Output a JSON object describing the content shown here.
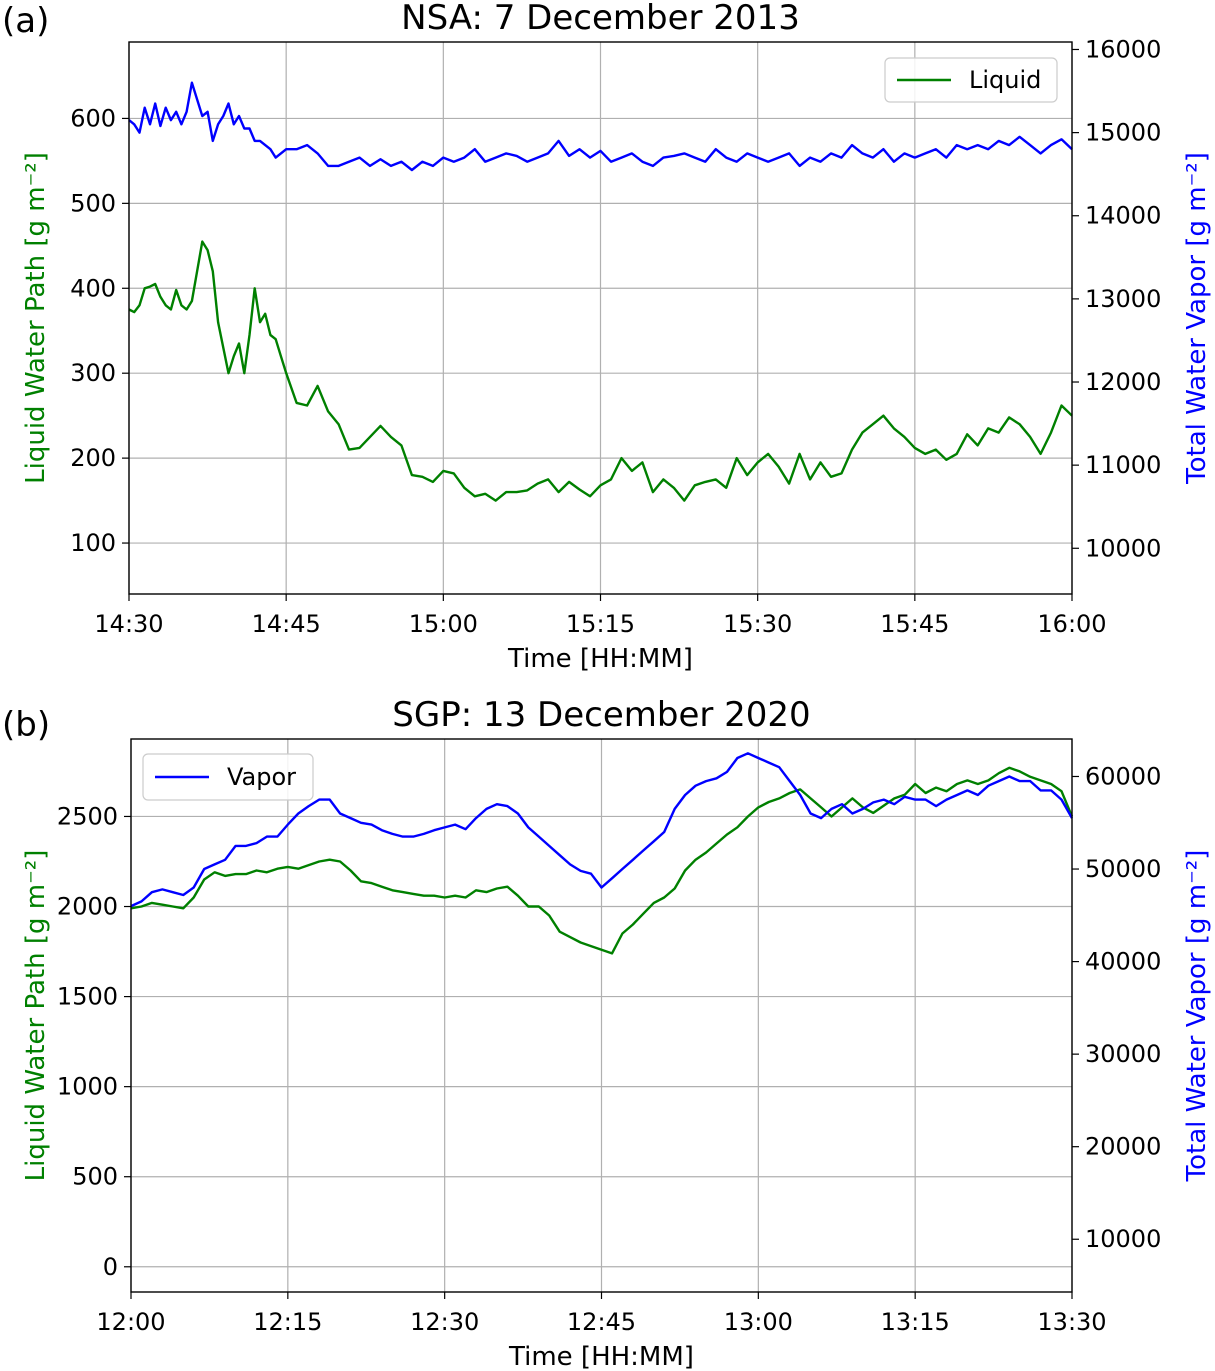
{
  "figure": {
    "panels": [
      {
        "label": "(a)",
        "title": "NSA: 7 December 2013"
      },
      {
        "label": "(b)",
        "title": "SGP: 13 December 2020"
      }
    ]
  },
  "chart_data": [
    {
      "type": "line",
      "title": "NSA: 7 December 2013",
      "panel_label": "(a)",
      "xlabel": "Time [HH:MM]",
      "ylabel": "Liquid Water Path [g m⁻²]",
      "ylabel_right": "Total Water Vapor [g m⁻²]",
      "x_ticks": [
        "14:30",
        "14:45",
        "15:00",
        "15:15",
        "15:30",
        "15:45",
        "16:00"
      ],
      "xlim_minutes": [
        0,
        90
      ],
      "ylim": [
        40,
        690
      ],
      "ylim_right": [
        9450,
        16090
      ],
      "y_ticks": [
        100,
        200,
        300,
        400,
        500,
        600
      ],
      "y_ticks_right": [
        10000,
        11000,
        12000,
        13000,
        14000,
        15000,
        16000
      ],
      "grid": true,
      "legend": {
        "position": "top-right",
        "entries": [
          "Liquid"
        ]
      },
      "colors": {
        "liquid": "#008000",
        "vapor": "#0000ff"
      },
      "series": [
        {
          "name": "Liquid",
          "axis": "left",
          "color": "#008000",
          "x": [
            0,
            0.5,
            1,
            1.5,
            2,
            2.5,
            3,
            3.5,
            4,
            4.5,
            5,
            5.5,
            6,
            6.5,
            7,
            7.5,
            8,
            8.5,
            9,
            9.5,
            10,
            10.5,
            11,
            11.5,
            12,
            12.5,
            13,
            13.5,
            14,
            14.5,
            15,
            16,
            17,
            18,
            19,
            20,
            21,
            22,
            23,
            24,
            25,
            26,
            27,
            28,
            29,
            30,
            31,
            32,
            33,
            34,
            35,
            36,
            37,
            38,
            39,
            40,
            41,
            42,
            43,
            44,
            45,
            46,
            47,
            48,
            49,
            50,
            51,
            52,
            53,
            54,
            55,
            56,
            57,
            58,
            59,
            60,
            61,
            62,
            63,
            64,
            65,
            66,
            67,
            68,
            69,
            70,
            71,
            72,
            73,
            74,
            75,
            76,
            77,
            78,
            79,
            80,
            81,
            82,
            83,
            84,
            85,
            86,
            87,
            88,
            89,
            90
          ],
          "values": [
            375,
            372,
            380,
            400,
            402,
            405,
            390,
            380,
            375,
            398,
            380,
            375,
            385,
            420,
            455,
            445,
            420,
            360,
            330,
            300,
            320,
            335,
            300,
            345,
            400,
            360,
            370,
            345,
            340,
            320,
            300,
            265,
            262,
            285,
            255,
            240,
            210,
            212,
            225,
            238,
            225,
            215,
            180,
            178,
            172,
            185,
            182,
            165,
            155,
            158,
            150,
            160,
            160,
            162,
            170,
            175,
            160,
            172,
            163,
            155,
            168,
            175,
            200,
            185,
            195,
            160,
            175,
            165,
            150,
            168,
            172,
            175,
            165,
            200,
            180,
            195,
            205,
            190,
            170,
            205,
            175,
            195,
            178,
            182,
            210,
            230,
            240,
            250,
            235,
            225,
            212,
            205,
            210,
            198,
            205,
            228,
            215,
            235,
            230,
            248,
            240,
            225,
            205,
            230,
            262,
            250
          ]
        },
        {
          "name": "Total Water Vapor",
          "axis": "right",
          "color": "#0000ff",
          "x": [
            0,
            0.5,
            1,
            1.5,
            2,
            2.5,
            3,
            3.5,
            4,
            4.5,
            5,
            5.5,
            6,
            6.5,
            7,
            7.5,
            8,
            8.5,
            9,
            9.5,
            10,
            10.5,
            11,
            11.5,
            12,
            12.5,
            13,
            13.5,
            14,
            14.5,
            15,
            16,
            17,
            18,
            19,
            20,
            21,
            22,
            23,
            24,
            25,
            26,
            27,
            28,
            29,
            30,
            31,
            32,
            33,
            34,
            35,
            36,
            37,
            38,
            39,
            40,
            41,
            42,
            43,
            44,
            45,
            46,
            47,
            48,
            49,
            50,
            51,
            52,
            53,
            54,
            55,
            56,
            57,
            58,
            59,
            60,
            61,
            62,
            63,
            64,
            65,
            66,
            67,
            68,
            69,
            70,
            71,
            72,
            73,
            74,
            75,
            76,
            77,
            78,
            79,
            80,
            81,
            82,
            83,
            84,
            85,
            86,
            87,
            88,
            89,
            90
          ],
          "values": [
            15150,
            15100,
            15000,
            15300,
            15100,
            15350,
            15080,
            15300,
            15150,
            15250,
            15100,
            15250,
            15600,
            15400,
            15200,
            15250,
            14900,
            15100,
            15200,
            15350,
            15100,
            15200,
            15050,
            15050,
            14900,
            14900,
            14850,
            14800,
            14700,
            14750,
            14800,
            14800,
            14850,
            14750,
            14600,
            14600,
            14650,
            14700,
            14600,
            14680,
            14600,
            14650,
            14550,
            14650,
            14600,
            14700,
            14650,
            14700,
            14800,
            14650,
            14700,
            14750,
            14720,
            14650,
            14700,
            14750,
            14900,
            14720,
            14800,
            14700,
            14780,
            14650,
            14700,
            14750,
            14650,
            14600,
            14700,
            14720,
            14750,
            14700,
            14650,
            14800,
            14700,
            14650,
            14750,
            14700,
            14650,
            14700,
            14750,
            14600,
            14700,
            14650,
            14750,
            14700,
            14850,
            14750,
            14700,
            14800,
            14650,
            14750,
            14700,
            14750,
            14800,
            14700,
            14850,
            14800,
            14850,
            14800,
            14900,
            14850,
            14950,
            14850,
            14750,
            14850,
            14920,
            14800
          ]
        }
      ]
    },
    {
      "type": "line",
      "title": "SGP: 13 December 2020",
      "panel_label": "(b)",
      "xlabel": "Time [HH:MM]",
      "ylabel": "Liquid Water Path [g m⁻²]",
      "ylabel_right": "Total Water Vapor [g m⁻²]",
      "x_ticks": [
        "12:00",
        "12:15",
        "12:30",
        "12:45",
        "13:00",
        "13:15",
        "13:30"
      ],
      "xlim_minutes": [
        0,
        90
      ],
      "ylim": [
        -140,
        2930
      ],
      "ylim_right": [
        4300,
        64050
      ],
      "y_ticks": [
        0,
        500,
        1000,
        1500,
        2000,
        2500
      ],
      "y_ticks_right": [
        10000,
        20000,
        30000,
        40000,
        50000,
        60000
      ],
      "grid": true,
      "legend": {
        "position": "top-left",
        "entries": [
          "Vapor"
        ]
      },
      "colors": {
        "liquid": "#008000",
        "vapor": "#0000ff"
      },
      "series": [
        {
          "name": "Liquid Water Path",
          "axis": "left",
          "color": "#008000",
          "x": [
            0,
            1,
            2,
            3,
            4,
            5,
            6,
            7,
            8,
            9,
            10,
            11,
            12,
            13,
            14,
            15,
            16,
            17,
            18,
            19,
            20,
            21,
            22,
            23,
            24,
            25,
            26,
            27,
            28,
            29,
            30,
            31,
            32,
            33,
            34,
            35,
            36,
            37,
            38,
            39,
            40,
            41,
            42,
            43,
            44,
            45,
            46,
            47,
            48,
            49,
            50,
            51,
            52,
            53,
            54,
            55,
            56,
            57,
            58,
            59,
            60,
            61,
            62,
            63,
            64,
            65,
            66,
            67,
            68,
            69,
            70,
            71,
            72,
            73,
            74,
            75,
            76,
            77,
            78,
            79,
            80,
            81,
            82,
            83,
            84,
            85,
            86,
            87,
            88,
            89,
            90
          ],
          "values": [
            1990,
            2000,
            2020,
            2010,
            2000,
            1990,
            2050,
            2150,
            2190,
            2170,
            2180,
            2180,
            2200,
            2190,
            2210,
            2220,
            2210,
            2230,
            2250,
            2260,
            2250,
            2200,
            2140,
            2130,
            2110,
            2090,
            2080,
            2070,
            2060,
            2060,
            2050,
            2060,
            2050,
            2090,
            2080,
            2100,
            2110,
            2060,
            2000,
            2000,
            1950,
            1860,
            1830,
            1800,
            1780,
            1760,
            1740,
            1850,
            1900,
            1960,
            2020,
            2050,
            2100,
            2200,
            2260,
            2300,
            2350,
            2400,
            2440,
            2500,
            2550,
            2580,
            2600,
            2630,
            2650,
            2600,
            2550,
            2500,
            2550,
            2600,
            2550,
            2520,
            2560,
            2600,
            2620,
            2680,
            2630,
            2660,
            2640,
            2680,
            2700,
            2680,
            2700,
            2740,
            2770,
            2750,
            2720,
            2700,
            2680,
            2640,
            2500
          ]
        },
        {
          "name": "Vapor",
          "axis": "right",
          "color": "#0000ff",
          "x": [
            0,
            1,
            2,
            3,
            4,
            5,
            6,
            7,
            8,
            9,
            10,
            11,
            12,
            13,
            14,
            15,
            16,
            17,
            18,
            19,
            20,
            21,
            22,
            23,
            24,
            25,
            26,
            27,
            28,
            29,
            30,
            31,
            32,
            33,
            34,
            35,
            36,
            37,
            38,
            39,
            40,
            41,
            42,
            43,
            44,
            45,
            46,
            47,
            48,
            49,
            50,
            51,
            52,
            53,
            54,
            55,
            56,
            57,
            58,
            59,
            60,
            61,
            62,
            63,
            64,
            65,
            66,
            67,
            68,
            69,
            70,
            71,
            72,
            73,
            74,
            75,
            76,
            77,
            78,
            79,
            80,
            81,
            82,
            83,
            84,
            85,
            86,
            87,
            88,
            89,
            90
          ],
          "values": [
            46000,
            46500,
            47500,
            47800,
            47500,
            47200,
            48000,
            50000,
            50500,
            51000,
            52500,
            52500,
            52800,
            53500,
            53500,
            54800,
            56000,
            56800,
            57500,
            57500,
            56000,
            55500,
            55000,
            54800,
            54200,
            53800,
            53500,
            53500,
            53800,
            54200,
            54500,
            54800,
            54300,
            55500,
            56500,
            57000,
            56800,
            56000,
            54500,
            53500,
            52500,
            51500,
            50500,
            49800,
            49500,
            48000,
            49000,
            50000,
            51000,
            52000,
            53000,
            54000,
            56500,
            58000,
            59000,
            59500,
            59800,
            60500,
            62000,
            62500,
            62000,
            61500,
            61000,
            59500,
            58000,
            56000,
            55500,
            56500,
            57000,
            56000,
            56500,
            57200,
            57500,
            57000,
            57800,
            57500,
            57500,
            56800,
            57500,
            58000,
            58500,
            58000,
            59000,
            59500,
            60000,
            59500,
            59500,
            58500,
            58500,
            57500,
            55500
          ]
        }
      ]
    }
  ]
}
